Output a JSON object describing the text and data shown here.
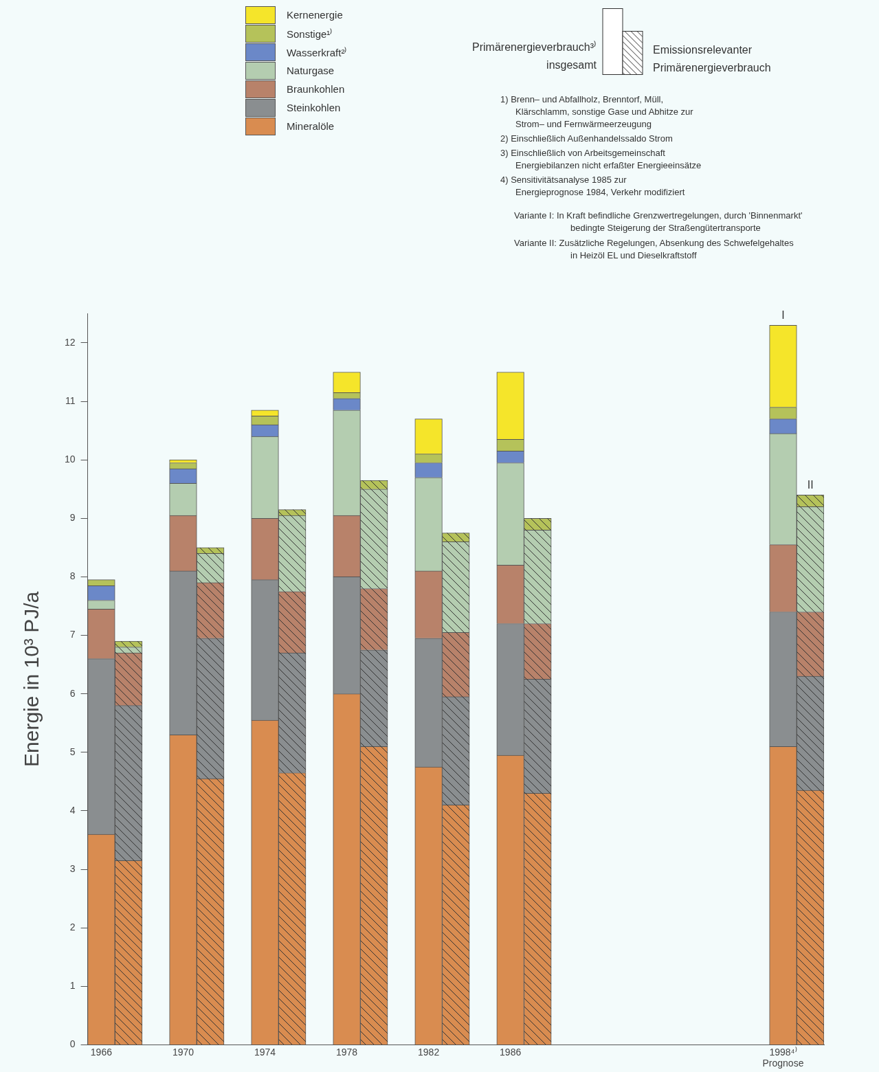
{
  "chart_data": {
    "type": "bar",
    "stacked": true,
    "legend": "top",
    "ylabel": "Energie in 10³ PJ/a",
    "categories": [
      "1966",
      null,
      null,
      "1970",
      null,
      null,
      "1974",
      null,
      null,
      "1978",
      null,
      null,
      "1982",
      null,
      null,
      "1986",
      null,
      null,
      null,
      null,
      null,
      null,
      null,
      null,
      null,
      "1998⁴⁾\nPrognose",
      null
    ],
    "ylim": [
      0,
      12.5
    ],
    "yticks": [
      0,
      1,
      2,
      3,
      4,
      5,
      6,
      7,
      8,
      9,
      10,
      11,
      12
    ],
    "series": [
      {
        "name": "Mineralöle",
        "color": "#d98c50",
        "values": [
          3.6,
          3.15,
          null,
          5.3,
          4.55,
          null,
          5.55,
          4.65,
          null,
          6.0,
          5.1,
          null,
          4.75,
          4.1,
          null,
          4.95,
          4.3,
          null,
          null,
          null,
          null,
          null,
          null,
          null,
          null,
          5.1,
          4.35
        ]
      },
      {
        "name": "Steinkohlen",
        "color": "#8a8e90",
        "values": [
          3.0,
          2.65,
          null,
          2.8,
          2.4,
          null,
          2.4,
          2.05,
          null,
          2.0,
          1.65,
          null,
          2.2,
          1.85,
          null,
          2.25,
          1.95,
          null,
          null,
          null,
          null,
          null,
          null,
          null,
          null,
          2.3,
          1.95
        ]
      },
      {
        "name": "Braunkohlen",
        "color": "#b8826a",
        "values": [
          0.85,
          0.9,
          null,
          0.95,
          0.95,
          null,
          1.05,
          1.05,
          null,
          1.05,
          1.05,
          null,
          1.15,
          1.1,
          null,
          1.0,
          0.95,
          null,
          null,
          null,
          null,
          null,
          null,
          null,
          null,
          1.15,
          1.1
        ]
      },
      {
        "name": "Naturgase",
        "color": "#b4cdb0",
        "values": [
          0.15,
          0.1,
          null,
          0.55,
          0.5,
          null,
          1.4,
          1.3,
          null,
          1.8,
          1.7,
          null,
          1.6,
          1.55,
          null,
          1.75,
          1.6,
          null,
          null,
          null,
          null,
          null,
          null,
          null,
          null,
          1.9,
          1.8
        ]
      },
      {
        "name": "Wasserkraft²⁾",
        "color": "#6b88c8",
        "values": [
          0.25,
          0,
          null,
          0.25,
          0,
          null,
          0.2,
          0,
          null,
          0.2,
          0,
          null,
          0.25,
          0,
          null,
          0.2,
          0,
          null,
          null,
          null,
          null,
          null,
          null,
          null,
          null,
          0.25,
          0
        ]
      },
      {
        "name": "Sonstige¹⁾",
        "color": "#b5c25a",
        "values": [
          0.1,
          0.1,
          null,
          0.1,
          0.1,
          null,
          0.15,
          0.1,
          null,
          0.1,
          0.15,
          null,
          0.15,
          0.15,
          null,
          0.2,
          0.2,
          null,
          null,
          null,
          null,
          null,
          null,
          null,
          null,
          0.2,
          0.2
        ]
      },
      {
        "name": "Kernenergie",
        "color": "#f5e52a",
        "values": [
          0,
          0,
          null,
          0.05,
          0,
          null,
          0.1,
          0,
          null,
          0.35,
          0,
          null,
          0.6,
          0,
          null,
          1.15,
          0,
          null,
          null,
          null,
          null,
          null,
          null,
          null,
          null,
          1.4,
          0
        ]
      }
    ],
    "annotations": [
      "Primärenergieverbrauch³⁾\ninsgesamt",
      "Emissionsrelevanter\nPrimärenergieverbrauch",
      "1) Brenn– und Abfallholz, Brenntorf, Müll,\nKlärschlamm, sonstige Gase und Abhitze zur\nStrom– und Fernwärmeerzeugung",
      "2) Einschließlich Außenhandelssaldo Strom",
      "3) Einschließlich von Arbeitsgemeinschaft\nEnergiebilanzen nicht erfaßter Energieeinsätze",
      "4) Sensitivitätsanalyse 1985 zur\nEnergieprognose 1984, Verkehr modifiziert",
      "Variante I: In Kraft befindliche Grenzwertregelungen, durch 'Binnenmarkt'\nbedingte Steigerung der Straßengütertransporte",
      "Variante II: Zusätzliche Regelungen, Absenkung des Schwefelgehaltes\nin Heizöl EL und Dieselkraftstoff",
      {
        "text": "I",
        "x": "1998⁴⁾\nPrognose",
        "y": 12.3
      },
      {
        "text": "II",
        "y": 9.4
      }
    ]
  }
}
